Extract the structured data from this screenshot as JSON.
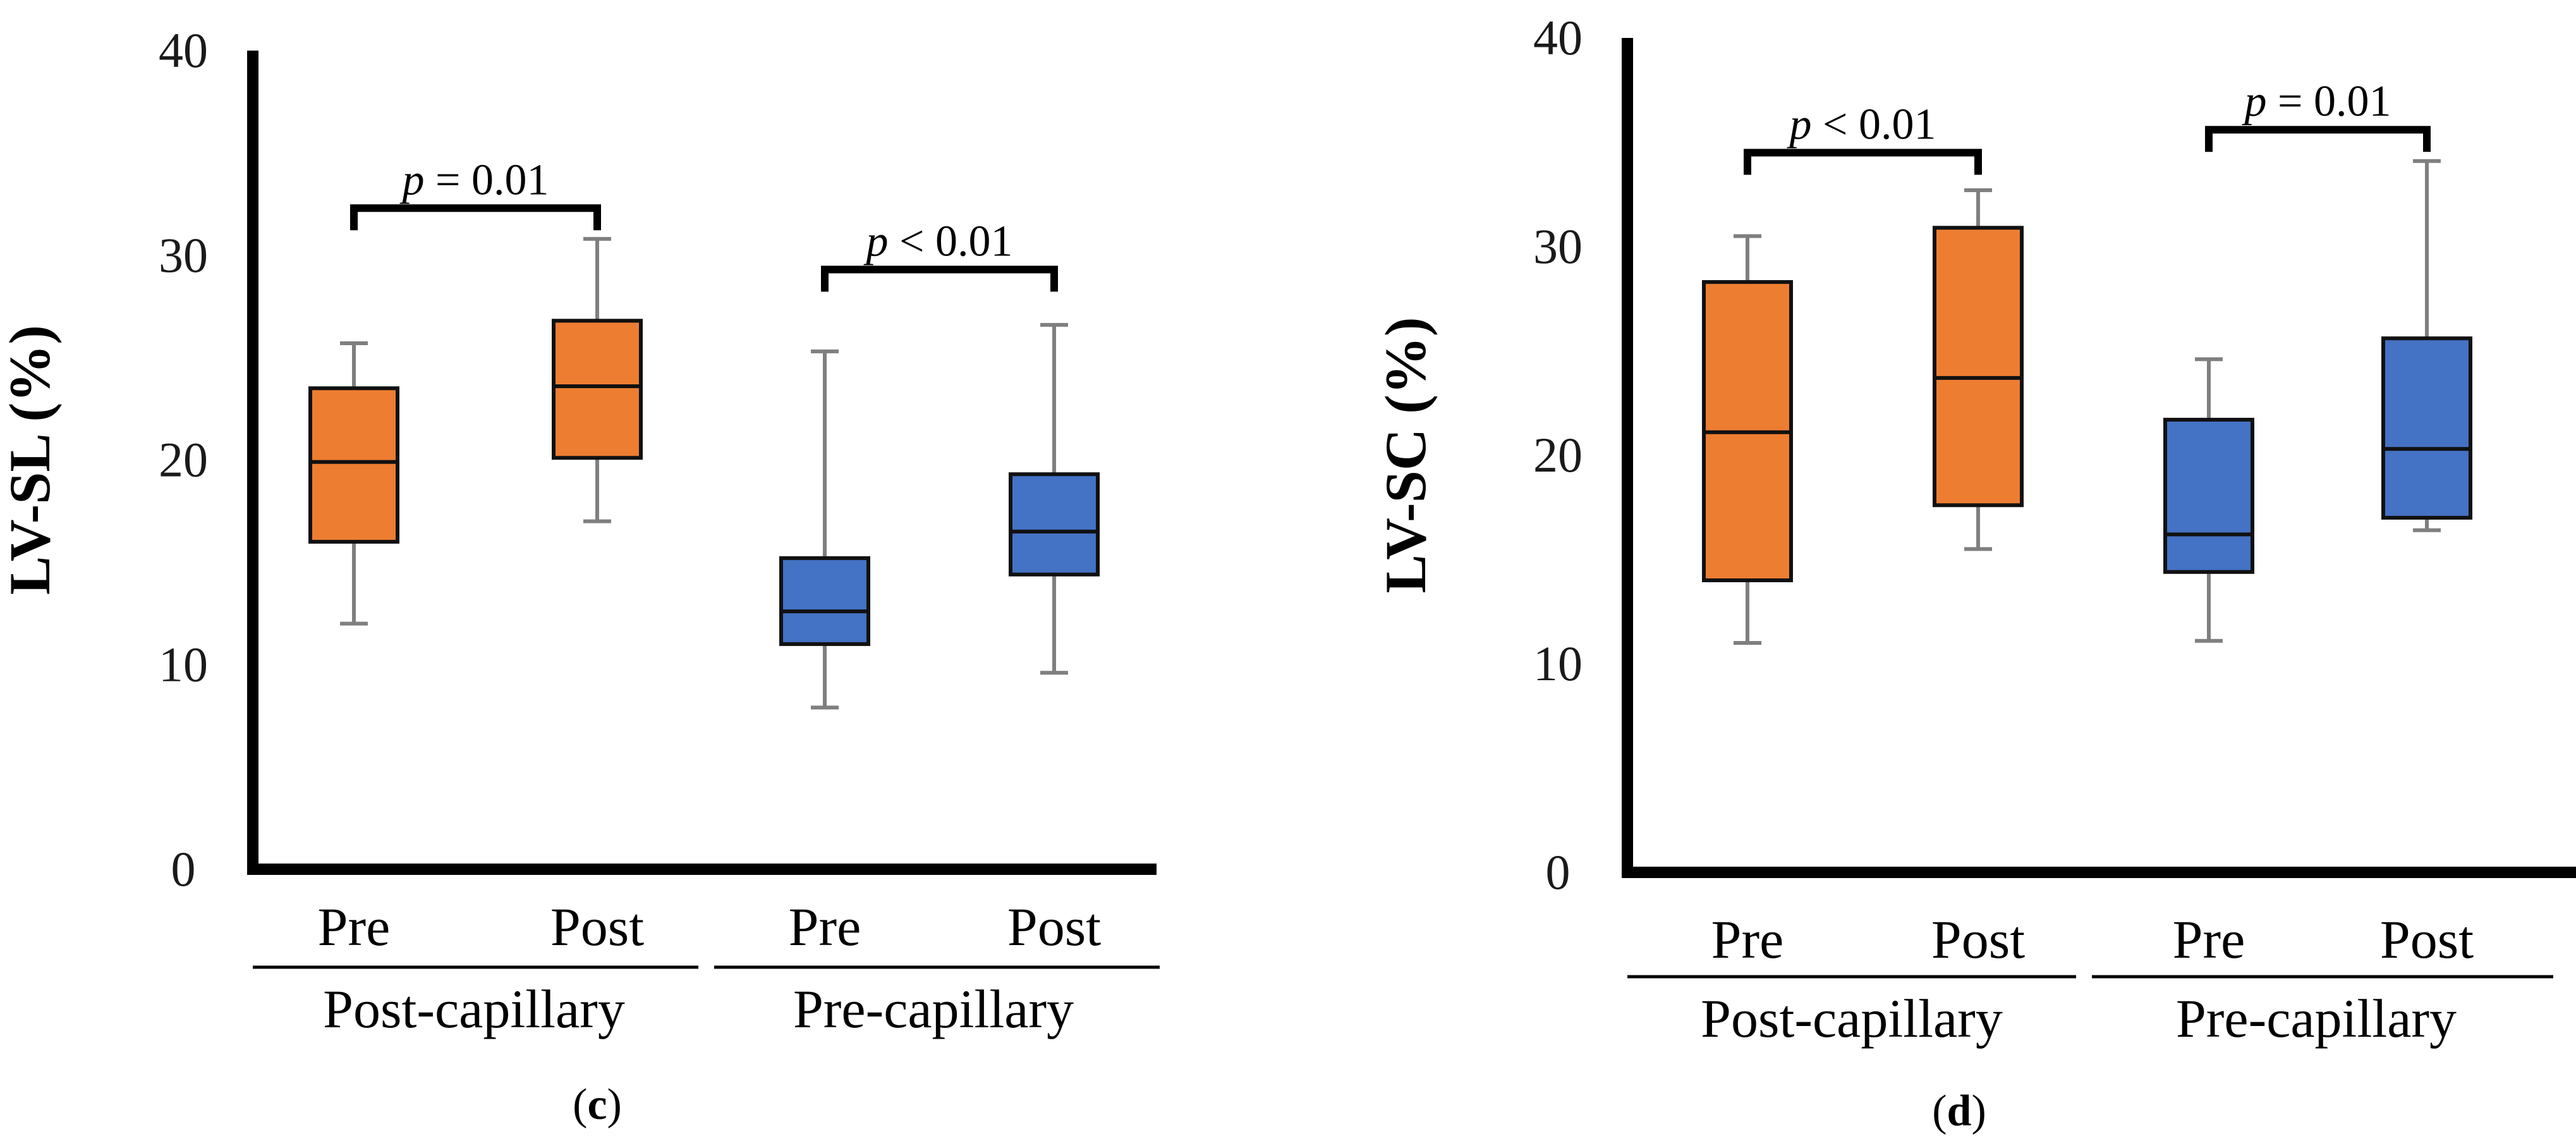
{
  "colors": {
    "post_capillary": "#ED7D31",
    "pre_capillary": "#4472C4",
    "whisker": "#7F7F7F",
    "axis": "#000000"
  },
  "chart_data": [
    {
      "id": "c",
      "type": "boxplot",
      "ylabel": "LV-SL (%)",
      "ylim": [
        0,
        40
      ],
      "yticks": [
        "0",
        "10",
        "20",
        "30",
        "40"
      ],
      "caption": {
        "open": "(",
        "letter": "c",
        "close": ")"
      },
      "categories": [
        "Pre",
        "Post",
        "Pre",
        "Post"
      ],
      "groups": [
        {
          "label": "Post-capillary",
          "color": "#ED7D31"
        },
        {
          "label": "Pre-capillary",
          "color": "#4472C4"
        }
      ],
      "boxes": [
        {
          "group": 0,
          "label": "Pre",
          "min": 12.0,
          "q1": 16.0,
          "median": 19.9,
          "q3": 23.5,
          "max": 25.7
        },
        {
          "group": 0,
          "label": "Post",
          "min": 17.0,
          "q1": 20.1,
          "median": 23.6,
          "q3": 26.8,
          "max": 30.8
        },
        {
          "group": 1,
          "label": "Pre",
          "min": 7.9,
          "q1": 11.0,
          "median": 12.6,
          "q3": 15.2,
          "max": 25.3
        },
        {
          "group": 1,
          "label": "Post",
          "min": 9.6,
          "q1": 14.4,
          "median": 16.5,
          "q3": 19.3,
          "max": 26.6
        }
      ],
      "annotations": [
        {
          "from": 0,
          "to": 1,
          "y": 32.3,
          "p": "p",
          "rest": " = 0.01"
        },
        {
          "from": 2,
          "to": 3,
          "y": 29.3,
          "p": "p",
          "rest": " < 0.01"
        }
      ]
    },
    {
      "id": "d",
      "type": "boxplot",
      "ylabel": "LV-SC (%)",
      "ylim": [
        0,
        40
      ],
      "yticks": [
        "0",
        "10",
        "20",
        "30",
        "40"
      ],
      "caption": {
        "open": "(",
        "letter": "d",
        "close": ")"
      },
      "categories": [
        "Pre",
        "Post",
        "Pre",
        "Post"
      ],
      "groups": [
        {
          "label": "Post-capillary",
          "color": "#ED7D31"
        },
        {
          "label": "Pre-capillary",
          "color": "#4472C4"
        }
      ],
      "boxes": [
        {
          "group": 0,
          "label": "Pre",
          "min": 11.0,
          "q1": 14.0,
          "median": 21.1,
          "q3": 28.3,
          "max": 30.5
        },
        {
          "group": 0,
          "label": "Post",
          "min": 15.5,
          "q1": 17.6,
          "median": 23.7,
          "q3": 30.9,
          "max": 32.7
        },
        {
          "group": 1,
          "label": "Pre",
          "min": 11.1,
          "q1": 14.4,
          "median": 16.2,
          "q3": 21.7,
          "max": 24.6
        },
        {
          "group": 1,
          "label": "Post",
          "min": 16.4,
          "q1": 17.0,
          "median": 20.3,
          "q3": 25.6,
          "max": 34.1
        }
      ],
      "annotations": [
        {
          "from": 0,
          "to": 1,
          "y": 34.5,
          "p": "p",
          "rest": " < 0.01"
        },
        {
          "from": 2,
          "to": 3,
          "y": 35.6,
          "p": "p",
          "rest": " = 0.01"
        }
      ]
    }
  ]
}
